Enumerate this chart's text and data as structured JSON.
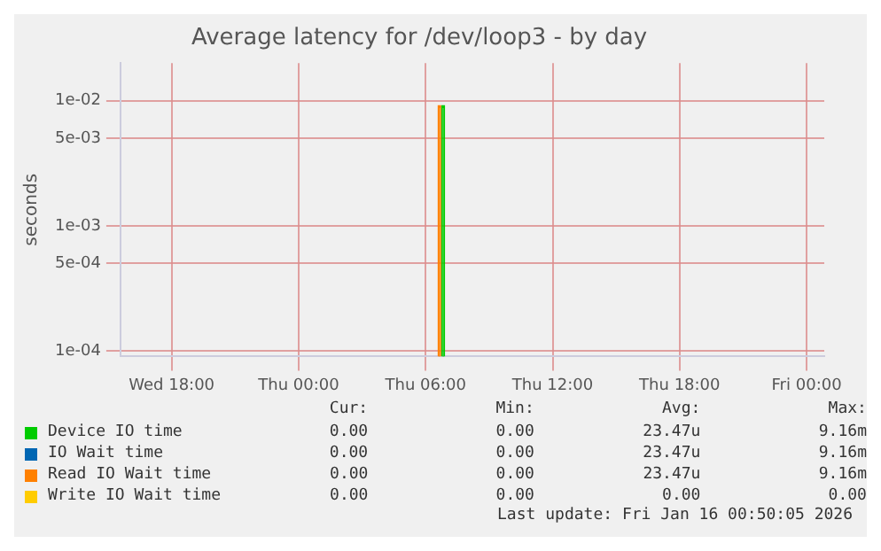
{
  "chart_data": {
    "type": "bar",
    "title": "Average latency for /dev/loop3 - by day",
    "ylabel": "seconds",
    "log": "y",
    "grid": true,
    "legend": "bottom",
    "xlim": [
      "2026-01-14T15:35",
      "2026-01-16T00:50"
    ],
    "xticks": [
      {
        "value": "2026-01-14T18:00",
        "label": "Wed 18:00"
      },
      {
        "value": "2026-01-15T00:00",
        "label": "Thu 00:00"
      },
      {
        "value": "2026-01-15T06:00",
        "label": "Thu 06:00"
      },
      {
        "value": "2026-01-15T12:00",
        "label": "Thu 12:00"
      },
      {
        "value": "2026-01-15T18:00",
        "label": "Thu 18:00"
      },
      {
        "value": "2026-01-16T00:00",
        "label": "Fri 00:00"
      }
    ],
    "ylim": [
      9e-05,
      0.02
    ],
    "yticks": [
      {
        "value": 0.0001,
        "label": "1e-04"
      },
      {
        "value": 0.0005,
        "label": "5e-04"
      },
      {
        "value": 0.001,
        "label": "1e-03"
      },
      {
        "value": 0.005,
        "label": "5e-03"
      },
      {
        "value": 0.01,
        "label": "1e-02"
      }
    ],
    "series": [
      {
        "name": "Device IO time",
        "color": "#00cc00",
        "x": [
          "2026-01-15T06:50"
        ],
        "values": [
          0.00916
        ]
      },
      {
        "name": "IO Wait time",
        "color": "#0066b3"
      },
      {
        "name": "Read IO Wait time",
        "color": "#ff8000",
        "x": [
          "2026-01-15T06:39"
        ],
        "values": [
          0.00916
        ]
      },
      {
        "name": "Write IO Wait time",
        "color": "#ffcc00"
      }
    ],
    "annotations": [
      "Cur:",
      "Min:",
      "Avg:",
      "Max:",
      "0.00",
      "0.00",
      "23.47u",
      "9.16m",
      "0.00",
      "0.00",
      "23.47u",
      "9.16m",
      "0.00",
      "0.00",
      "23.47u",
      "9.16m",
      "0.00",
      "0.00",
      "0.00",
      "0.00",
      "Last update: Fri Jan 16 00:50:05 2026"
    ]
  }
}
